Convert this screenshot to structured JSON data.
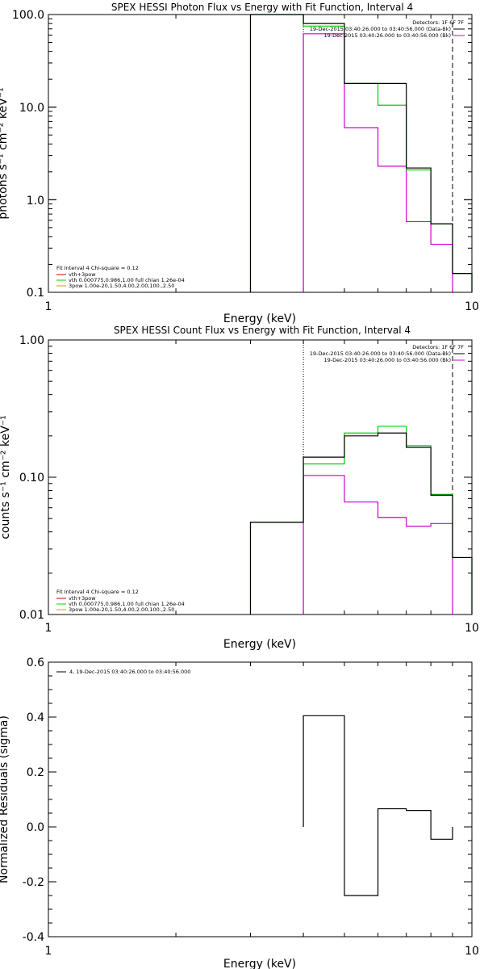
{
  "colors": {
    "data": "#000000",
    "model": "#00d000",
    "background": "#d000d0",
    "fn_vth": "#d00000",
    "fn_3pow": "#c8a000"
  },
  "panels": [
    {
      "id": "photon",
      "title": "SPEX HESSI Photon Flux vs Energy with Fit Function, Interval 4",
      "xlabel": "Energy (keV)",
      "ylabel": "photons s⁻¹ cm⁻² keV⁻¹",
      "x_ticklabels": [
        "1",
        "10"
      ],
      "y_ticklabels": [
        "0.1",
        "1.0",
        "10.0",
        "100.0"
      ],
      "legend_right": [
        "Detectors: 1F 6F 7F",
        "19-Dec-2015 03:40:26.000 to 03:40:56.000 (Data-Bk)",
        "19-Dec-2015 03:40:26.000 to 03:40:56.000 (Bk)"
      ],
      "legend_left": [
        "Fit Interval 4   Chi-square = 0.12",
        "vth+3pow",
        "vth 0.000775,0.986,1.00  full chian 1.26e-04",
        "3pow 1.00e-20,1.50,4.00,2.00,100.,2.50"
      ]
    },
    {
      "id": "count",
      "title": "SPEX HESSI Count Flux vs Energy with Fit Function, Interval 4",
      "xlabel": "Energy (keV)",
      "ylabel": "counts s⁻¹ cm⁻² keV⁻¹",
      "x_ticklabels": [
        "1",
        "10"
      ],
      "y_ticklabels": [
        "0.01",
        "0.10",
        "1.00"
      ],
      "legend_right": [
        "Detectors: 1F 6F 7F",
        "19-Dec-2015 03:40:26.000 to 03:40:56.000 (Data-Bk)",
        "19-Dec-2015 03:40:26.000 to 03:40:56.000 (Bk)"
      ],
      "legend_left": [
        "Fit Interval 4   Chi-square = 0.12",
        "vth+3pow",
        "vth 0.000775,0.986,1.00  full chian 1.26e-04",
        "3pow 1.00e-20,1.50,4.00,2.00,100.,2.50"
      ]
    },
    {
      "id": "resid",
      "title": "",
      "xlabel": "Energy (keV)",
      "ylabel": "Normalized Residuals (sigma)",
      "x_ticklabels": [
        "1",
        "10"
      ],
      "y_ticklabels": [
        "-0.4",
        "-0.2",
        "0.0",
        "0.2",
        "0.4",
        "0.6"
      ],
      "legend_left": [
        "4, 19-Dec-2015 03:40:26.000 to 03:40:56.000"
      ]
    }
  ],
  "chart_data": [
    {
      "type": "line",
      "title": "SPEX HESSI Photon Flux vs Energy with Fit Function, Interval 4",
      "xlabel": "Energy (keV)",
      "ylabel": "photons s⁻¹ cm⁻² keV⁻¹",
      "xscale": "log",
      "yscale": "log",
      "xlim": [
        1,
        10
      ],
      "ylim": [
        0.1,
        100
      ],
      "vlines": [
        {
          "x": 4,
          "style": "dotted"
        },
        {
          "x": 9,
          "style": "dashed"
        }
      ],
      "bin_edges": [
        3,
        4,
        5,
        6,
        7,
        8,
        9,
        10
      ],
      "series": [
        {
          "values": [
            1000,
            80,
            18,
            18,
            2.2,
            0.55,
            0.16
          ]
        },
        {
          "values": [
            1000,
            75,
            18,
            10.5,
            2.1,
            0.55,
            0.16
          ]
        },
        {
          "values": [
            null,
            62,
            6,
            2.3,
            0.58,
            0.33,
            null
          ]
        }
      ]
    },
    {
      "type": "line",
      "title": "SPEX HESSI Count Flux vs Energy with Fit Function, Interval 4",
      "xlabel": "Energy (keV)",
      "ylabel": "counts s⁻¹ cm⁻² keV⁻¹",
      "xscale": "log",
      "yscale": "log",
      "xlim": [
        1,
        10
      ],
      "ylim": [
        0.01,
        1.0
      ],
      "vlines": [
        {
          "x": 4,
          "style": "dotted"
        },
        {
          "x": 9,
          "style": "dashed"
        }
      ],
      "bin_edges": [
        3,
        4,
        5,
        6,
        7,
        8,
        9,
        10
      ],
      "series": [
        {
          "values": [
            0.047,
            0.14,
            0.2,
            0.21,
            0.165,
            0.074,
            0.026
          ]
        },
        {
          "values": [
            0.047,
            0.125,
            0.21,
            0.235,
            0.17,
            0.075,
            0.026
          ]
        },
        {
          "values": [
            null,
            0.103,
            0.066,
            0.051,
            0.044,
            0.046,
            null
          ]
        }
      ]
    },
    {
      "type": "line",
      "xlabel": "Energy (keV)",
      "ylabel": "Normalized Residuals (sigma)",
      "xscale": "log",
      "xlim": [
        1,
        10
      ],
      "ylim": [
        -0.4,
        0.6
      ],
      "bin_edges": [
        4,
        5,
        6,
        7,
        8,
        9
      ],
      "series": [
        {
          "values": [
            0.405,
            -0.25,
            0.066,
            0.06,
            -0.045
          ]
        }
      ]
    }
  ]
}
